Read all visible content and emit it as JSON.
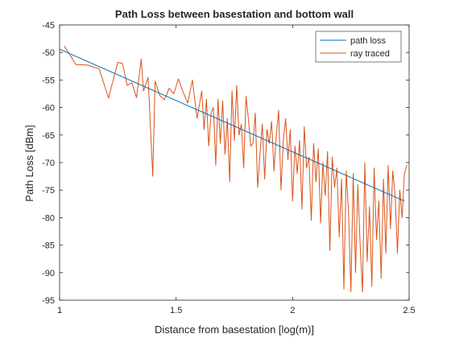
{
  "chart_data": {
    "type": "line",
    "title": "Path Loss between basestation and bottom wall",
    "xlabel": "Distance from basestation [log(m)]",
    "ylabel": "Path Loss [dBm]",
    "xlim": [
      1,
      2.5
    ],
    "ylim": [
      -95,
      -45
    ],
    "xticks": [
      "1",
      "1.5",
      "2",
      "2.5"
    ],
    "yticks": [
      "-45",
      "-50",
      "-55",
      "-60",
      "-65",
      "-70",
      "-75",
      "-80",
      "-85",
      "-90",
      "-95"
    ],
    "grid": false,
    "legend_position": "top-right",
    "series": [
      {
        "name": "path loss",
        "color": "#0072bd",
        "x": [
          1.0,
          2.48
        ],
        "y": [
          -49.4,
          -77.0
        ]
      },
      {
        "name": "ray traced",
        "color": "#d95319",
        "x": [
          1.02,
          1.07,
          1.12,
          1.17,
          1.21,
          1.23,
          1.25,
          1.27,
          1.29,
          1.31,
          1.33,
          1.35,
          1.36,
          1.38,
          1.4,
          1.41,
          1.43,
          1.45,
          1.47,
          1.49,
          1.51,
          1.53,
          1.55,
          1.57,
          1.59,
          1.61,
          1.62,
          1.63,
          1.64,
          1.65,
          1.66,
          1.67,
          1.68,
          1.69,
          1.7,
          1.71,
          1.72,
          1.73,
          1.74,
          1.75,
          1.76,
          1.77,
          1.78,
          1.79,
          1.8,
          1.81,
          1.82,
          1.83,
          1.84,
          1.85,
          1.86,
          1.87,
          1.88,
          1.89,
          1.9,
          1.91,
          1.92,
          1.93,
          1.94,
          1.95,
          1.96,
          1.97,
          1.98,
          1.99,
          2.0,
          2.01,
          2.02,
          2.03,
          2.04,
          2.05,
          2.06,
          2.07,
          2.08,
          2.09,
          2.1,
          2.11,
          2.12,
          2.13,
          2.14,
          2.15,
          2.16,
          2.17,
          2.18,
          2.19,
          2.2,
          2.21,
          2.22,
          2.23,
          2.24,
          2.25,
          2.26,
          2.27,
          2.28,
          2.29,
          2.3,
          2.31,
          2.32,
          2.33,
          2.34,
          2.35,
          2.36,
          2.37,
          2.38,
          2.39,
          2.4,
          2.41,
          2.42,
          2.43,
          2.44,
          2.45,
          2.46,
          2.47,
          2.48,
          2.49
        ],
        "y": [
          -48.8,
          -52.2,
          -52.3,
          -53.0,
          -58.3,
          -55.0,
          -51.8,
          -52.0,
          -56.0,
          -55.5,
          -58.2,
          -51.2,
          -57.0,
          -54.5,
          -72.5,
          -55.2,
          -57.8,
          -58.6,
          -56.5,
          -57.5,
          -54.8,
          -57.2,
          -59.2,
          -55.0,
          -62.0,
          -57.0,
          -64.0,
          -58.5,
          -67.0,
          -61.0,
          -60.0,
          -70.5,
          -58.5,
          -66.5,
          -58.8,
          -68.5,
          -62.0,
          -73.5,
          -57.0,
          -66.0,
          -56.0,
          -65.0,
          -63.0,
          -71.0,
          -58.0,
          -62.0,
          -67.0,
          -66.5,
          -61.0,
          -74.5,
          -68.5,
          -63.0,
          -73.0,
          -64.0,
          -66.5,
          -62.5,
          -71.5,
          -65.0,
          -60.5,
          -75.0,
          -66.0,
          -62.0,
          -69.5,
          -64.0,
          -77.0,
          -67.0,
          -72.0,
          -66.0,
          -78.5,
          -63.5,
          -71.0,
          -69.0,
          -80.5,
          -66.5,
          -73.5,
          -67.5,
          -81.0,
          -70.0,
          -76.0,
          -68.0,
          -86.0,
          -69.0,
          -74.5,
          -71.0,
          -83.5,
          -73.0,
          -93.0,
          -71.5,
          -79.0,
          -93.5,
          -72.0,
          -90.0,
          -74.0,
          -85.0,
          -93.5,
          -70.0,
          -88.0,
          -78.0,
          -92.5,
          -71.0,
          -84.0,
          -77.0,
          -91.0,
          -73.0,
          -86.5,
          -70.5,
          -82.0,
          -71.5,
          -76.0,
          -86.5,
          -75.0,
          -80.0,
          -72.0,
          -70.5
        ]
      }
    ]
  }
}
